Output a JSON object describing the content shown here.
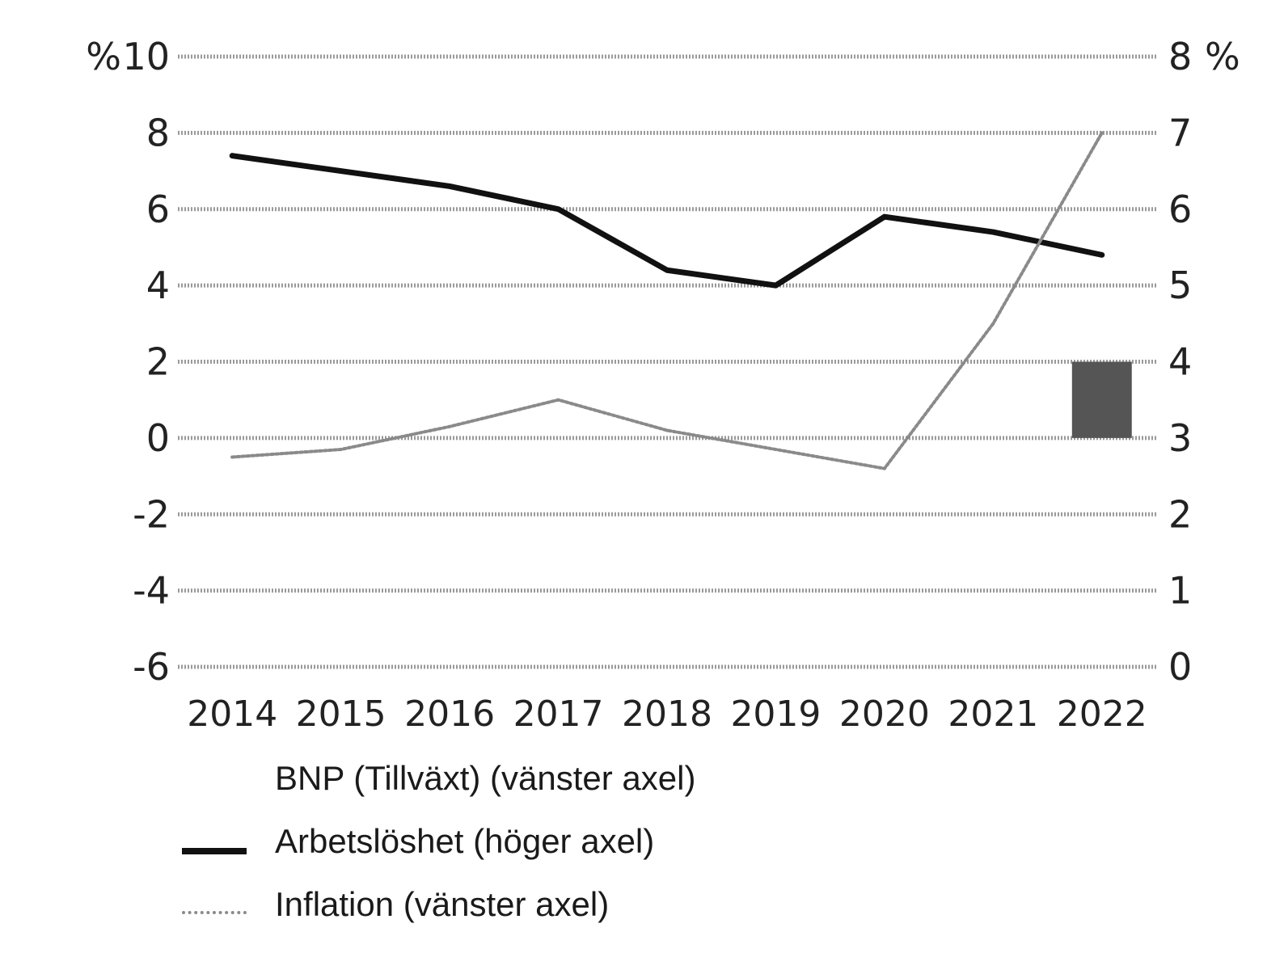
{
  "chart_data": {
    "type": "line",
    "categories": [
      "2014",
      "2015",
      "2016",
      "2017",
      "2018",
      "2019",
      "2020",
      "2021",
      "2022"
    ],
    "y_left": {
      "unit_label": "%",
      "range": [
        -6,
        10
      ],
      "ticks": [
        -6,
        -4,
        -2,
        0,
        2,
        4,
        6,
        8,
        10
      ]
    },
    "y_right": {
      "unit_label": "%",
      "range": [
        0,
        8
      ],
      "ticks": [
        0,
        1,
        2,
        3,
        4,
        5,
        6,
        7,
        8
      ]
    },
    "grid": true,
    "legend_position": "bottom-left",
    "series": [
      {
        "name": "BNP (Tillväxt) (vänster axel)",
        "kind": "bar",
        "axis": "left",
        "color": "#555555",
        "values": [
          0,
          0,
          0,
          0,
          0,
          0,
          0,
          0,
          2
        ]
      },
      {
        "name": "Arbetslöshet (höger axel)",
        "kind": "line",
        "axis": "right",
        "style": "solid",
        "color": "#111111",
        "values": [
          6.7,
          6.5,
          6.3,
          6.0,
          5.2,
          5.0,
          5.9,
          5.7,
          5.4
        ]
      },
      {
        "name": "Inflation (vänster axel)",
        "kind": "line",
        "axis": "left",
        "style": "dotted",
        "color": "#8a8a8a",
        "values": [
          -0.5,
          -0.3,
          0.3,
          1.0,
          0.2,
          -0.3,
          -0.8,
          3.0,
          8.0
        ]
      }
    ]
  }
}
